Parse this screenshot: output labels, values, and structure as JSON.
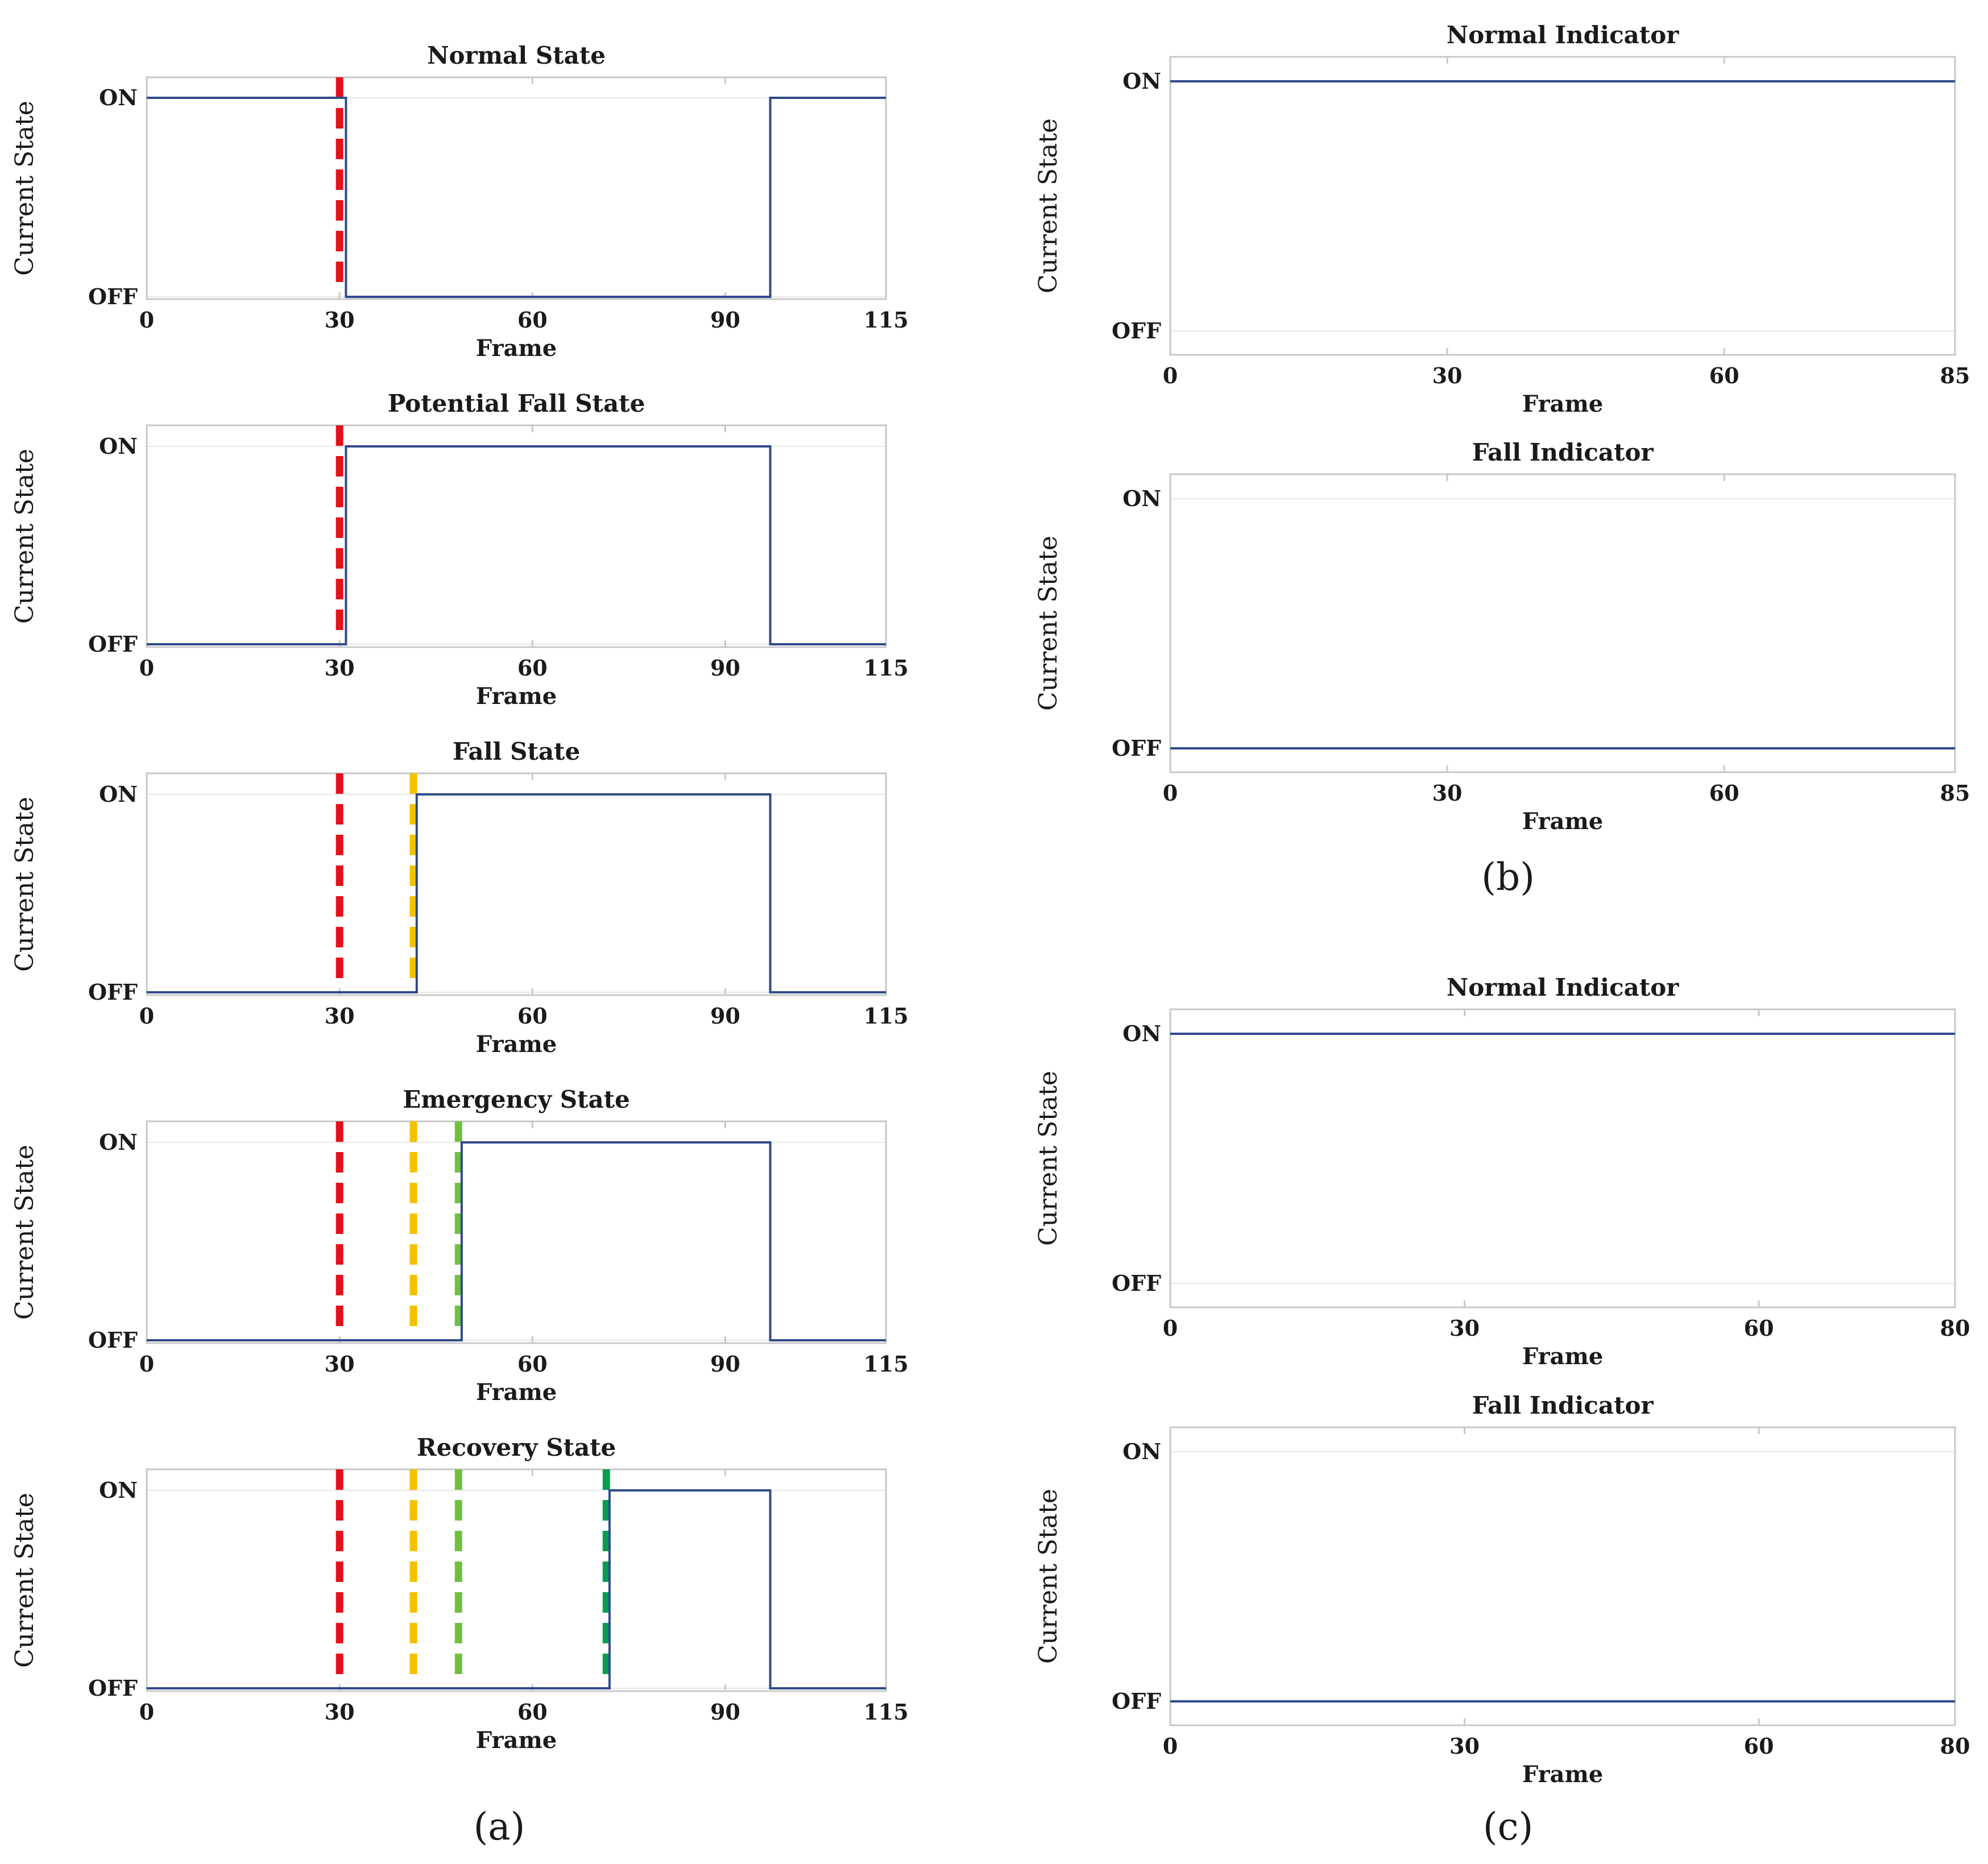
{
  "colors": {
    "line": "#2f4a8a",
    "axis": "#c8c8c8",
    "grid": "#e6e6e6",
    "markers": {
      "red": "#e3111b",
      "yellow": "#f5c000",
      "lightgreen": "#70c040",
      "darkgreen": "#00a050"
    }
  },
  "panel_labels": {
    "a": "(a)",
    "b": "(b)",
    "c": "(c)"
  },
  "chart_data": [
    {
      "id": "a1",
      "group": "a",
      "type": "line",
      "step": true,
      "title": "Normal State",
      "xlabel": "Frame",
      "ylabel": "Current State",
      "xlim": [
        0,
        115
      ],
      "xticks": [
        "0",
        "30",
        "60",
        "90",
        "115"
      ],
      "ylevels": [
        "OFF",
        "ON"
      ],
      "x": [
        0,
        31,
        31,
        97,
        97,
        115
      ],
      "y": [
        1,
        1,
        0,
        0,
        1,
        1
      ],
      "markers": [
        {
          "frame": 30,
          "color": "red"
        }
      ]
    },
    {
      "id": "a2",
      "group": "a",
      "type": "line",
      "step": true,
      "title": "Potential Fall State",
      "xlabel": "Frame",
      "ylabel": "Current State",
      "xlim": [
        0,
        115
      ],
      "xticks": [
        "0",
        "30",
        "60",
        "90",
        "115"
      ],
      "ylevels": [
        "OFF",
        "ON"
      ],
      "x": [
        0,
        31,
        31,
        97,
        97,
        115
      ],
      "y": [
        0,
        0,
        1,
        1,
        0,
        0
      ],
      "markers": [
        {
          "frame": 30,
          "color": "red"
        }
      ]
    },
    {
      "id": "a3",
      "group": "a",
      "type": "line",
      "step": true,
      "title": "Fall State",
      "xlabel": "Frame",
      "ylabel": "Current State",
      "xlim": [
        0,
        115
      ],
      "xticks": [
        "0",
        "30",
        "60",
        "90",
        "115"
      ],
      "ylevels": [
        "OFF",
        "ON"
      ],
      "x": [
        0,
        42,
        42,
        97,
        97,
        115
      ],
      "y": [
        0,
        0,
        1,
        1,
        0,
        0
      ],
      "markers": [
        {
          "frame": 30,
          "color": "red"
        },
        {
          "frame": 41.5,
          "color": "yellow"
        }
      ]
    },
    {
      "id": "a4",
      "group": "a",
      "type": "line",
      "step": true,
      "title": "Emergency State",
      "xlabel": "Frame",
      "ylabel": "Current State",
      "xlim": [
        0,
        115
      ],
      "xticks": [
        "0",
        "30",
        "60",
        "90",
        "115"
      ],
      "ylevels": [
        "OFF",
        "ON"
      ],
      "x": [
        0,
        49,
        49,
        97,
        97,
        115
      ],
      "y": [
        0,
        0,
        1,
        1,
        0,
        0
      ],
      "markers": [
        {
          "frame": 30,
          "color": "red"
        },
        {
          "frame": 41.5,
          "color": "yellow"
        },
        {
          "frame": 48.5,
          "color": "lightgreen"
        }
      ]
    },
    {
      "id": "a5",
      "group": "a",
      "type": "line",
      "step": true,
      "title": "Recovery State",
      "xlabel": "Frame",
      "ylabel": "Current State",
      "xlim": [
        0,
        115
      ],
      "xticks": [
        "0",
        "30",
        "60",
        "90",
        "115"
      ],
      "ylevels": [
        "OFF",
        "ON"
      ],
      "x": [
        0,
        72,
        72,
        97,
        97,
        115
      ],
      "y": [
        0,
        0,
        1,
        1,
        0,
        0
      ],
      "markers": [
        {
          "frame": 30,
          "color": "red"
        },
        {
          "frame": 41.5,
          "color": "yellow"
        },
        {
          "frame": 48.5,
          "color": "lightgreen"
        },
        {
          "frame": 71.5,
          "color": "darkgreen"
        }
      ]
    },
    {
      "id": "b1",
      "group": "b",
      "type": "line",
      "step": true,
      "title": "Normal Indicator",
      "xlabel": "Frame",
      "ylabel": "Current State",
      "xlim": [
        0,
        85
      ],
      "xticks": [
        "0",
        "30",
        "60",
        "85"
      ],
      "ylevels": [
        "OFF",
        "ON"
      ],
      "x": [
        0,
        85
      ],
      "y": [
        1,
        1
      ],
      "markers": []
    },
    {
      "id": "b2",
      "group": "b",
      "type": "line",
      "step": true,
      "title": "Fall Indicator",
      "xlabel": "Frame",
      "ylabel": "Current State",
      "xlim": [
        0,
        85
      ],
      "xticks": [
        "0",
        "30",
        "60",
        "85"
      ],
      "ylevels": [
        "OFF",
        "ON"
      ],
      "x": [
        0,
        85
      ],
      "y": [
        0,
        0
      ],
      "markers": []
    },
    {
      "id": "c1",
      "group": "c",
      "type": "line",
      "step": true,
      "title": "Normal Indicator",
      "xlabel": "Frame",
      "ylabel": "Current State",
      "xlim": [
        0,
        80
      ],
      "xticks": [
        "0",
        "30",
        "60",
        "80"
      ],
      "ylevels": [
        "OFF",
        "ON"
      ],
      "x": [
        0,
        80
      ],
      "y": [
        1,
        1
      ],
      "markers": []
    },
    {
      "id": "c2",
      "group": "c",
      "type": "line",
      "step": true,
      "title": "Fall Indicator",
      "xlabel": "Frame",
      "ylabel": "Current State",
      "xlim": [
        0,
        80
      ],
      "xticks": [
        "0",
        "30",
        "60",
        "80"
      ],
      "ylevels": [
        "OFF",
        "ON"
      ],
      "x": [
        0,
        80
      ],
      "y": [
        0,
        0
      ],
      "markers": []
    }
  ]
}
